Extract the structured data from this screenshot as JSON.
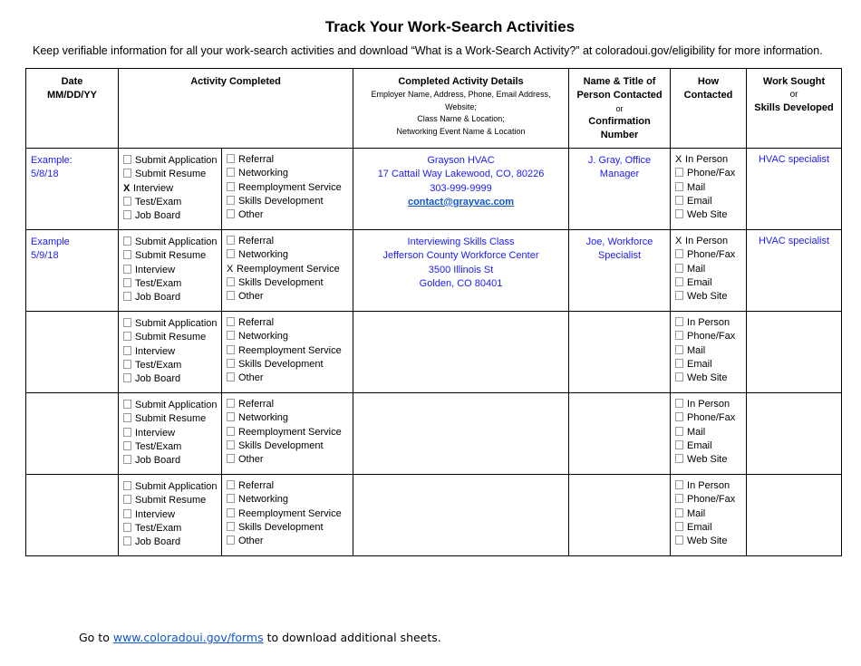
{
  "title": "Track Your Work-Search Activities",
  "intro": "Keep verifiable information for all your work-search activities and download “What is a Work-Search Activity?” at coloradoui.gov/eligibility for more information.",
  "headers": {
    "date": [
      "Date",
      "MM/DD/YY"
    ],
    "activity": "Activity Completed",
    "details_title": "Completed Activity Details",
    "details_sub": [
      "Employer Name, Address, Phone, Email Address,",
      "Website;",
      "Class Name & Location;",
      "Networking Event Name & Location"
    ],
    "name_title": [
      "Name & Title of",
      "Person Contacted"
    ],
    "name_or": "or",
    "name_conf": [
      "Confirmation",
      "Number"
    ],
    "how": [
      "How",
      "Contacted"
    ],
    "work": "Work Sought",
    "work_or": "or",
    "work_skills": "Skills Developed"
  },
  "activities_left": [
    "Submit Application",
    "Submit Resume",
    "Interview",
    "Test/Exam",
    "Job Board"
  ],
  "activities_right": [
    "Referral",
    "Networking",
    "Reemployment Service",
    "Skills Development",
    "Other"
  ],
  "contact_methods": [
    "In Person",
    "Phone/Fax",
    "Mail",
    "Email",
    "Web Site"
  ],
  "rows": [
    {
      "date": [
        "Example:",
        "5/8/18"
      ],
      "left_checked": [
        2
      ],
      "right_checked": [],
      "details": [
        "Grayson HVAC",
        "17 Cattail Way Lakewood, CO, 80226",
        "303-999-9999"
      ],
      "details_link": "contact@grayvac.com",
      "contact": "J. Gray, Office Manager",
      "how_checked": [
        0
      ],
      "work": "HVAC specialist"
    },
    {
      "date": [
        "Example",
        "5/9/18"
      ],
      "left_checked": [],
      "right_checked": [
        2
      ],
      "details": [
        "Interviewing Skills Class",
        "Jefferson County Workforce Center",
        "3500 Illinois St",
        "Golden, CO 80401"
      ],
      "details_link": "",
      "contact": "Joe, Workforce Specialist",
      "how_checked": [
        0
      ],
      "work": "HVAC specialist"
    },
    {
      "date": [
        "",
        ""
      ],
      "left_checked": [],
      "right_checked": [],
      "details": [],
      "details_link": "",
      "contact": "",
      "how_checked": [],
      "work": ""
    },
    {
      "date": [
        "",
        ""
      ],
      "left_checked": [],
      "right_checked": [],
      "details": [],
      "details_link": "",
      "contact": "",
      "how_checked": [],
      "work": ""
    },
    {
      "date": [
        "",
        ""
      ],
      "left_checked": [],
      "right_checked": [],
      "details": [],
      "details_link": "",
      "contact": "",
      "how_checked": [],
      "work": ""
    }
  ],
  "footer": {
    "prefix": "Go to ",
    "link": "www.coloradoui.gov/forms",
    "suffix": " to download additional sheets."
  },
  "colors": {
    "example_text": "#1a1aff",
    "link": "#1155cc"
  }
}
